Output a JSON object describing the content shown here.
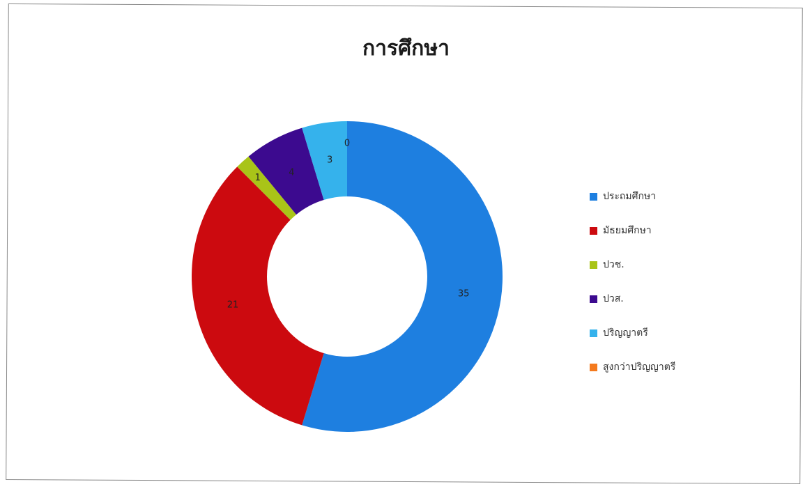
{
  "chart_data": {
    "type": "doughnut",
    "title": "การศึกษา",
    "categories": [
      "ประถมศึกษา",
      "มัธยมศึกษา",
      "ปวช.",
      "ปวส.",
      "ปริญญาตรี",
      "สูงกว่าปริญญาตรี"
    ],
    "values": [
      35,
      21,
      1,
      4,
      3,
      0
    ],
    "colors": [
      "#1e7fe0",
      "#cc0a0f",
      "#a9c418",
      "#3c0a8f",
      "#35b2ec",
      "#f47a1e"
    ],
    "legend_position": "right",
    "series": [
      {
        "values": [
          35,
          21,
          1,
          4,
          3,
          0
        ]
      }
    ]
  }
}
